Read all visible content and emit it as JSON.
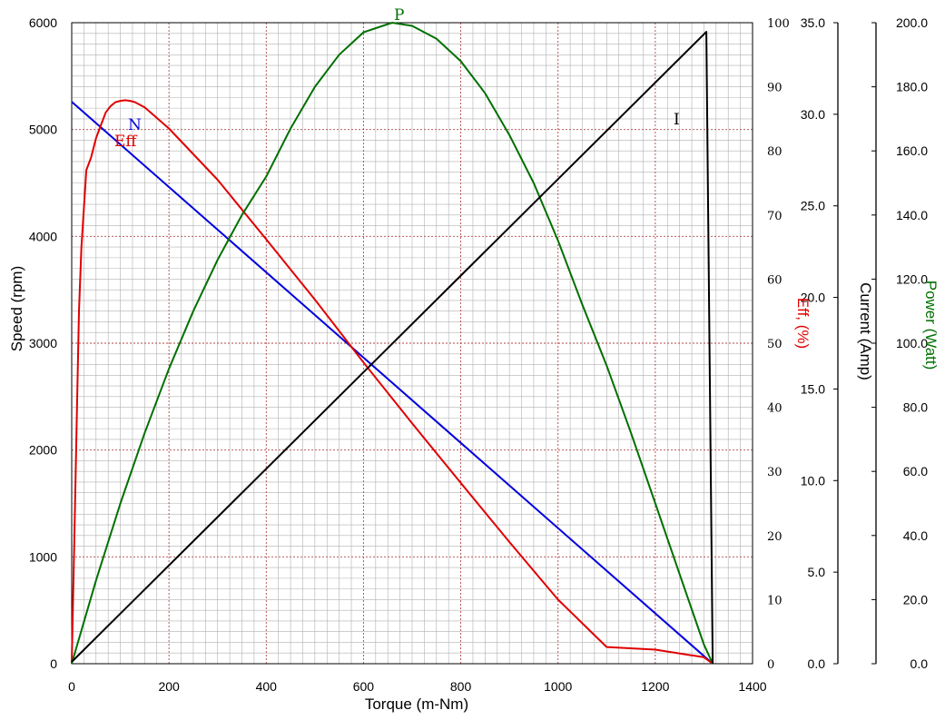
{
  "chart_data": {
    "type": "line",
    "xlabel": "Torque (m-Nm)",
    "xlim": [
      0,
      1400
    ],
    "x_ticks": [
      0,
      200,
      400,
      600,
      800,
      1000,
      1200,
      1400
    ],
    "axes": {
      "speed": {
        "label": "Speed (rpm)",
        "range": [
          0,
          6000
        ],
        "ticks": [
          "0",
          "1000",
          "2000",
          "3000",
          "4000",
          "5000",
          "6000"
        ],
        "color": "#000000"
      },
      "efficiency": {
        "label": "Eff, (%)",
        "range": [
          0,
          100
        ],
        "ticks": [
          "0",
          "10",
          "20",
          "30",
          "40",
          "50",
          "60",
          "70",
          "80",
          "90",
          "100"
        ],
        "color": "#e00000"
      },
      "current": {
        "label": "Current (Amp)",
        "range": [
          0,
          35
        ],
        "ticks": [
          "0.0",
          "5.0",
          "10.0",
          "15.0",
          "20.0",
          "25.0",
          "30.0",
          "35.0"
        ],
        "color": "#000000"
      },
      "power": {
        "label": "Power (Watt)",
        "range": [
          0,
          200
        ],
        "ticks": [
          "0.0",
          "20.0",
          "40.0",
          "60.0",
          "80.0",
          "100.0",
          "120.0",
          "140.0",
          "160.0",
          "180.0",
          "200.0"
        ],
        "color": "#007000"
      }
    },
    "series": [
      {
        "name": "N",
        "axis": "speed",
        "color": "#0000dd",
        "x": [
          0,
          1318
        ],
        "y": [
          5260,
          0
        ]
      },
      {
        "name": "Eff",
        "axis": "efficiency",
        "color": "#e00000",
        "x": [
          0,
          5,
          10,
          15,
          20,
          25,
          30,
          40,
          50,
          60,
          70,
          80,
          90,
          100,
          110,
          120,
          130,
          150,
          200,
          300,
          400,
          500,
          600,
          700,
          800,
          900,
          1000,
          1100,
          1200,
          1300,
          1318
        ],
        "y": [
          0,
          18,
          37,
          55,
          65,
          71,
          77,
          79,
          82,
          84,
          86,
          87,
          87.6,
          87.8,
          87.9,
          87.8,
          87.6,
          86.8,
          83.5,
          75.5,
          66.2,
          56.8,
          47,
          37.5,
          28.2,
          19,
          10,
          2.6,
          2.2,
          1.0,
          0
        ]
      },
      {
        "name": "P",
        "axis": "power",
        "color": "#007000",
        "x": [
          0,
          50,
          100,
          150,
          200,
          250,
          300,
          350,
          400,
          450,
          500,
          550,
          600,
          659,
          700,
          750,
          800,
          850,
          900,
          950,
          1000,
          1050,
          1100,
          1150,
          1200,
          1250,
          1300,
          1318
        ],
        "y": [
          0,
          26,
          50,
          72,
          92,
          110,
          126,
          140,
          152,
          167,
          180,
          190,
          197,
          200,
          199,
          195,
          188,
          178,
          165,
          150,
          132,
          112,
          93,
          72,
          50,
          28,
          6,
          0
        ]
      },
      {
        "name": "I",
        "axis": "current",
        "color": "#000000",
        "x": [
          0,
          1305,
          1318
        ],
        "y": [
          0.1,
          34.5,
          0
        ]
      }
    ],
    "grid": true
  }
}
